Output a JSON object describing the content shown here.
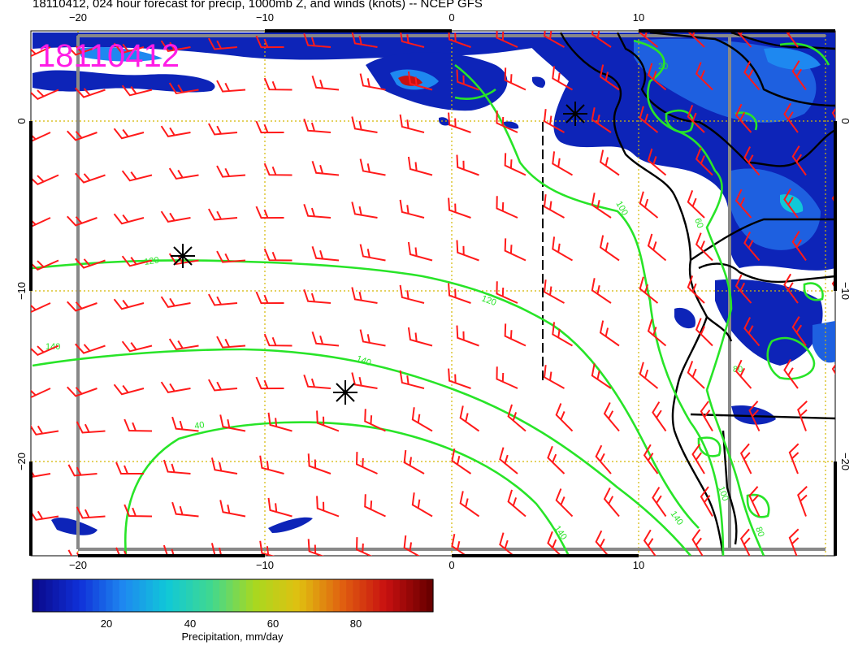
{
  "title": "18110412, 024 hour forecast for precip, 1000mb Z, and winds (knots) -- NCEP GFS",
  "stamp": "18110412",
  "x_ticks_top": [
    "−20",
    "−10",
    "0",
    "10"
  ],
  "x_ticks_bottom": [
    "−20",
    "−10",
    "0",
    "10"
  ],
  "y_ticks_left": [
    "0",
    "−10",
    "−20"
  ],
  "y_ticks_right": [
    "0",
    "−10",
    "−20"
  ],
  "contour_labels": [
    "120",
    "120",
    "140",
    "140",
    "140",
    "140",
    "100",
    "100",
    "80",
    "80",
    "60",
    "40",
    "20"
  ],
  "colorbar": {
    "label": "Precipitation, mm/day",
    "ticks": [
      "20",
      "40",
      "60",
      "80"
    ],
    "colors": [
      "#0a0a8c",
      "#1030d8",
      "#1e88f0",
      "#10c8d8",
      "#40d890",
      "#a8d820",
      "#e0c010",
      "#e06010",
      "#c81010",
      "#6a0000"
    ]
  },
  "colors": {
    "barb": "#ff1a1a",
    "contour": "#28e428",
    "coast": "#000000",
    "grid": "#d4b800"
  },
  "markers": [
    "asterisk",
    "asterisk",
    "asterisk"
  ]
}
